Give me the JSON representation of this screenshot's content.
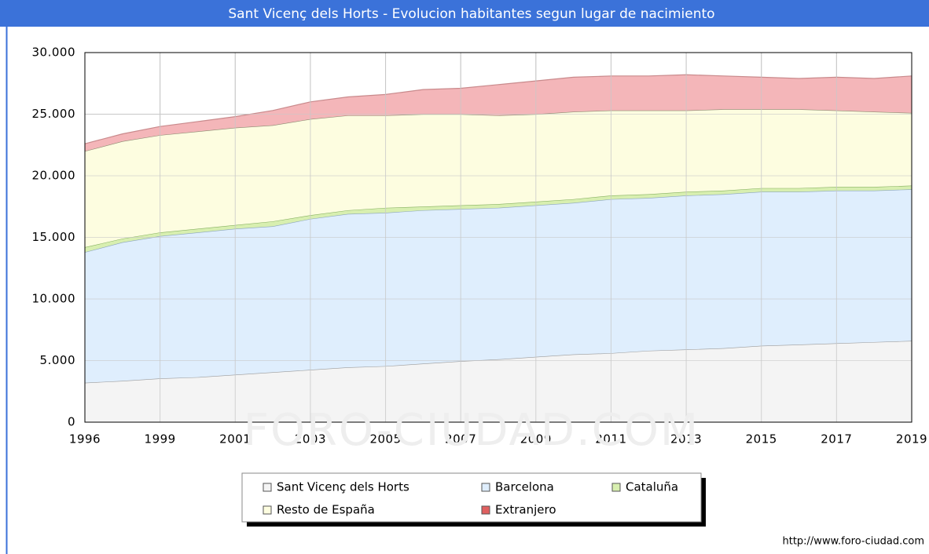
{
  "chart_data": {
    "type": "stacked_area",
    "title": "Sant Vicenç dels Horts - Evolucion habitantes segun lugar de nacimiento",
    "watermark": "FORO-CIUDAD.COM",
    "source": "http://www.foro-ciudad.com",
    "categories": [
      "1996",
      null,
      "1999",
      null,
      "2001",
      null,
      "2003",
      null,
      "2005",
      null,
      "2007",
      null,
      "2009",
      null,
      "2011",
      null,
      "2013",
      null,
      "2015",
      null,
      "2017",
      null,
      "2019"
    ],
    "series": [
      {
        "name": "Sant Vicenç dels Horts",
        "color": "#f4f4f4",
        "line": "#9a9a9a",
        "values": [
          3200,
          3350,
          3550,
          3650,
          3850,
          4050,
          4250,
          4450,
          4550,
          4750,
          4950,
          5100,
          5300,
          5500,
          5600,
          5800,
          5900,
          6000,
          6200,
          6300,
          6400,
          6500,
          6600
        ]
      },
      {
        "name": "Barcelona",
        "color": "#dfeefd",
        "line": "#8aa4bd",
        "values": [
          10600,
          11250,
          11550,
          11750,
          11850,
          11850,
          12250,
          12450,
          12450,
          12450,
          12350,
          12300,
          12300,
          12300,
          12500,
          12400,
          12500,
          12500,
          12500,
          12400,
          12400,
          12300,
          12300
        ]
      },
      {
        "name": "Cataluña",
        "color": "#d8efb0",
        "line": "#86b060",
        "values": [
          400,
          300,
          300,
          300,
          300,
          400,
          300,
          300,
          400,
          300,
          300,
          300,
          300,
          300,
          300,
          300,
          300,
          300,
          300,
          300,
          300,
          300,
          300
        ]
      },
      {
        "name": "Resto de España",
        "color": "#fdfde0",
        "line": "#8a8a70",
        "values": [
          7800,
          7900,
          7900,
          7900,
          7900,
          7800,
          7800,
          7700,
          7500,
          7500,
          7400,
          7200,
          7100,
          7100,
          6900,
          6800,
          6600,
          6600,
          6400,
          6400,
          6200,
          6100,
          5900
        ]
      },
      {
        "name": "Extranjero",
        "color": "#f4b6b9",
        "line": "#c98a8c",
        "swatch": "#e06060",
        "values": [
          600,
          600,
          700,
          800,
          900,
          1200,
          1400,
          1500,
          1700,
          2000,
          2100,
          2500,
          2700,
          2800,
          2800,
          2800,
          2900,
          2700,
          2600,
          2500,
          2700,
          2700,
          3000
        ]
      }
    ],
    "ylim": [
      0,
      30000
    ],
    "yticks": [
      0,
      {
        "value": 5000,
        "label": "5.000"
      },
      {
        "value": 10000,
        "label": "10.000"
      },
      {
        "value": 15000,
        "label": "15.000"
      },
      {
        "value": 20000,
        "label": "20.000"
      },
      {
        "value": 25000,
        "label": "25.000"
      },
      {
        "value": 30000,
        "label": "30.000"
      }
    ],
    "grid": true
  }
}
